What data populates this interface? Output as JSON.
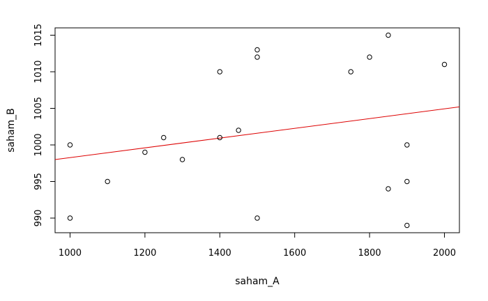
{
  "chart_data": {
    "type": "scatter",
    "title": "",
    "xlabel": "saham_A",
    "ylabel": "saham_B",
    "xlim": [
      960,
      2040
    ],
    "ylim": [
      988,
      1016
    ],
    "x_ticks": [
      1000,
      1200,
      1400,
      1600,
      1800,
      2000
    ],
    "y_ticks": [
      990,
      995,
      1000,
      1005,
      1010,
      1015
    ],
    "grid": false,
    "legend": "none",
    "points": [
      {
        "x": 1000,
        "y": 1000
      },
      {
        "x": 1000,
        "y": 990
      },
      {
        "x": 1100,
        "y": 995
      },
      {
        "x": 1200,
        "y": 999
      },
      {
        "x": 1250,
        "y": 1001
      },
      {
        "x": 1300,
        "y": 998
      },
      {
        "x": 1400,
        "y": 1010
      },
      {
        "x": 1400,
        "y": 1001
      },
      {
        "x": 1450,
        "y": 1002
      },
      {
        "x": 1500,
        "y": 1013
      },
      {
        "x": 1500,
        "y": 1012
      },
      {
        "x": 1500,
        "y": 990
      },
      {
        "x": 1750,
        "y": 1010
      },
      {
        "x": 1800,
        "y": 1012
      },
      {
        "x": 1850,
        "y": 1015
      },
      {
        "x": 1850,
        "y": 994
      },
      {
        "x": 1900,
        "y": 1000
      },
      {
        "x": 1900,
        "y": 995
      },
      {
        "x": 1900,
        "y": 989
      },
      {
        "x": 2000,
        "y": 1011
      }
    ],
    "regression_line": {
      "color": "#dd0000",
      "from": {
        "x": 960,
        "y": 998
      },
      "to": {
        "x": 2040,
        "y": 1005.2
      }
    },
    "point_color": "#000000"
  }
}
